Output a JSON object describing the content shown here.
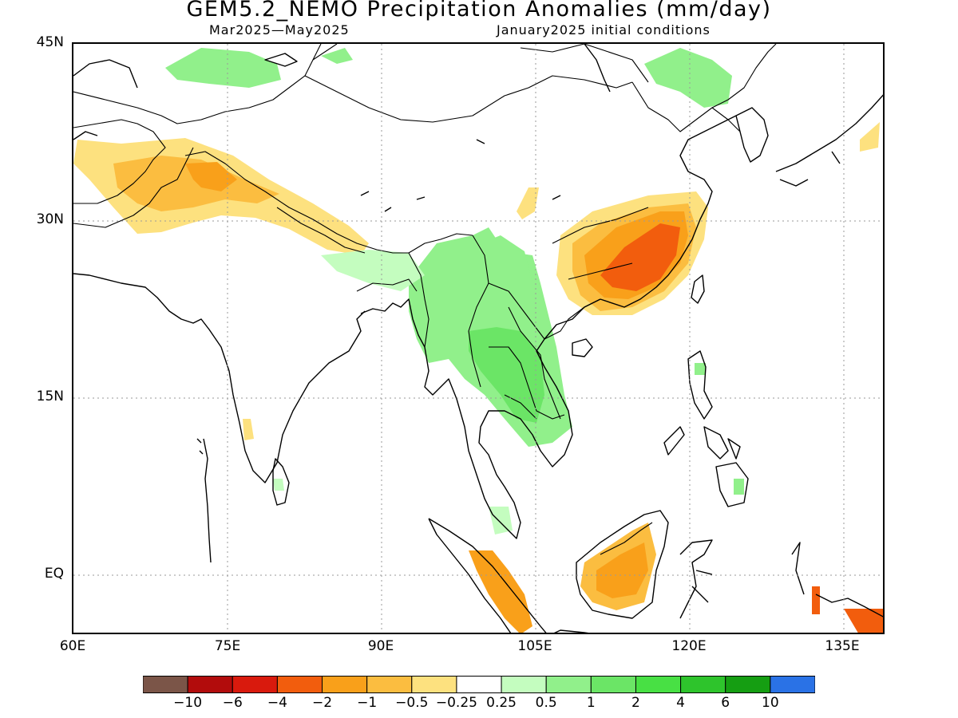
{
  "title": "GEM5.2_NEMO Precipitation Anomalies (mm/day)",
  "period": "Mar2025—May2025",
  "init": "January2025 initial conditions",
  "lat_labels": [
    "45N",
    "30N",
    "15N",
    "EQ"
  ],
  "lon_labels": [
    "60E",
    "75E",
    "90E",
    "105E",
    "120E",
    "135E"
  ],
  "map_extent": {
    "lon": [
      60,
      140
    ],
    "lat": [
      -5,
      45
    ]
  },
  "colorbar": {
    "colors": [
      "#7b5548",
      "#b20c0c",
      "#d91a0d",
      "#f25d0d",
      "#f9a01a",
      "#fbbd40",
      "#fde17f",
      "#ffffff",
      "#c4fdbf",
      "#91f08b",
      "#6be566",
      "#48e044",
      "#2ec42c",
      "#159e12",
      "#2a72e6"
    ],
    "labels": [
      "−10",
      "−6",
      "−4",
      "−2",
      "−1",
      "−0.5",
      "−0.25",
      "0.25",
      "0.5",
      "1",
      "2",
      "4",
      "6",
      "10"
    ]
  }
}
